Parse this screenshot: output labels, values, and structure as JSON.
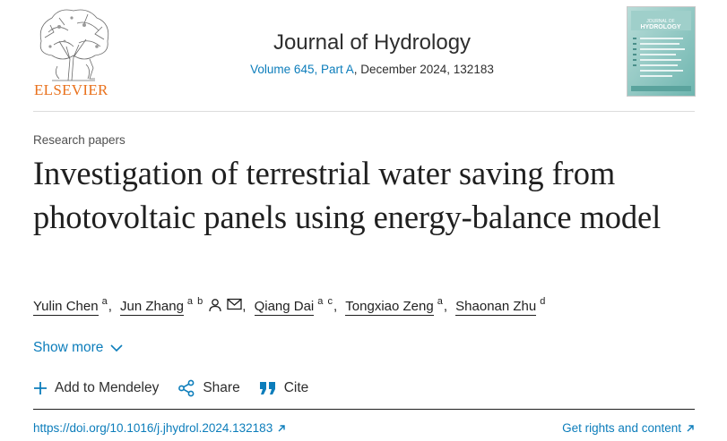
{
  "header": {
    "publisher": "ELSEVIER",
    "journal_title": "Journal of Hydrology",
    "volume_link": "Volume 645, Part A",
    "issue_rest": ", December 2024, 132183",
    "cover_title_line1": "JOURNAL OF",
    "cover_title_line2": "HYDROLOGY"
  },
  "article": {
    "section": "Research papers",
    "title": "Investigation of terrestrial water saving from photovoltaic panels using energy-balance model",
    "authors": [
      {
        "name": "Yulin Chen",
        "affil": "a"
      },
      {
        "name": "Jun Zhang",
        "affil": "a b"
      },
      {
        "name": "Qiang Dai",
        "affil": "a c"
      },
      {
        "name": "Tongxiao Zeng",
        "affil": "a"
      },
      {
        "name": "Shaonan Zhu",
        "affil": "d"
      }
    ],
    "separator": ","
  },
  "controls": {
    "show_more": "Show more",
    "add_mendeley": "Add to Mendeley",
    "share": "Share",
    "cite": "Cite"
  },
  "footer": {
    "doi": "https://doi.org/10.1016/j.jhydrol.2024.132183",
    "rights": "Get rights and content"
  },
  "colors": {
    "link_blue": "#0c7dbb",
    "elsevier_orange": "#e9711c",
    "text": "#1f1f1f"
  },
  "icons": [
    "elsevier-tree-logo",
    "journal-cover",
    "person-icon",
    "envelope-icon",
    "chevron-down-icon",
    "plus-icon",
    "share-icon",
    "quote-icon",
    "external-arrow-icon"
  ]
}
